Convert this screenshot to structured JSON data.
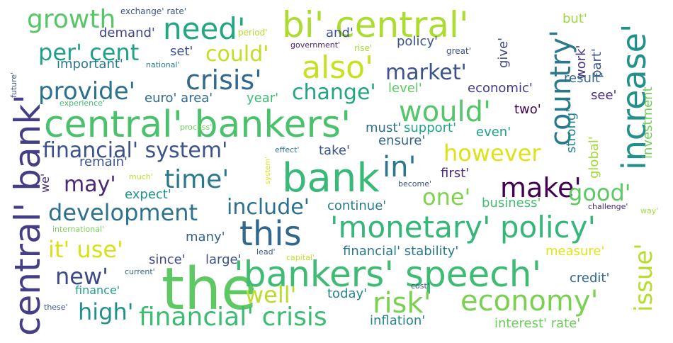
{
  "words": [
    {
      "text": "the",
      "color": "#5ec962"
    },
    {
      "text": "'bankers' speech'",
      "color": "#3fbc73"
    },
    {
      "text": "central' bankers'",
      "color": "#4ac16d"
    },
    {
      "text": "bi' central'",
      "color": "#addc30"
    },
    {
      "text": "central' bank'",
      "color": "#433e85"
    },
    {
      "text": "bank",
      "color": "#38b977"
    },
    {
      "text": "'monetary' policy'",
      "color": "#35b779"
    },
    {
      "text": "this",
      "color": "#31688e"
    },
    {
      "text": "increase'",
      "color": "#21918c"
    },
    {
      "text": "country'",
      "color": "#2a788e"
    },
    {
      "text": "economy'",
      "color": "#7ad151"
    },
    {
      "text": "financial' crisis",
      "color": "#3dbc74"
    },
    {
      "text": "would'",
      "color": "#54c568"
    },
    {
      "text": "also'",
      "color": "#c8e020"
    },
    {
      "text": "need'",
      "color": "#22a785"
    },
    {
      "text": "growth",
      "color": "#56c667"
    },
    {
      "text": "risk'",
      "color": "#7ad151"
    },
    {
      "text": "crisis'",
      "color": "#31688e"
    },
    {
      "text": "financial' system'",
      "color": "#3b528b"
    },
    {
      "text": "development",
      "color": "#2c718e"
    },
    {
      "text": "make'",
      "color": "#440154"
    },
    {
      "text": "time'",
      "color": "#2a788e"
    },
    {
      "text": "in'",
      "color": "#2a788e"
    },
    {
      "text": "per' cent",
      "color": "#1fa088"
    },
    {
      "text": "however",
      "color": "#dde318"
    },
    {
      "text": "change'",
      "color": "#21a585"
    },
    {
      "text": "market'",
      "color": "#3b528b"
    },
    {
      "text": "provide'",
      "color": "#2c718e"
    },
    {
      "text": "include'",
      "color": "#2c718e"
    },
    {
      "text": "issue'",
      "color": "#b5de2b"
    },
    {
      "text": "high'",
      "color": "#21918c"
    },
    {
      "text": "good'",
      "color": "#5ec962"
    },
    {
      "text": "could'",
      "color": "#c2df23"
    },
    {
      "text": "it' use'",
      "color": "#d8e219"
    },
    {
      "text": "one'",
      "color": "#7fd34e"
    },
    {
      "text": "new'",
      "color": "#3e4989"
    },
    {
      "text": "may'",
      "color": "#482878"
    },
    {
      "text": "well'",
      "color": "#b8de29"
    },
    {
      "text": "investment",
      "color": "#6ece58"
    },
    {
      "text": "global'",
      "color": "#a0da39"
    },
    {
      "text": "strong'",
      "color": "#24868e"
    },
    {
      "text": "give'",
      "color": "#3e4989"
    },
    {
      "text": "part'",
      "color": "#3b528b"
    },
    {
      "text": "work'",
      "color": "#46327e"
    },
    {
      "text": "inflation'",
      "color": "#25848e"
    },
    {
      "text": "interest' rate'",
      "color": "#6ccd5a"
    },
    {
      "text": "financial' stability'",
      "color": "#2a788e"
    },
    {
      "text": "credit'",
      "color": "#31688e"
    },
    {
      "text": "policy'",
      "color": "#3b528b"
    },
    {
      "text": "economic'",
      "color": "#443a83"
    },
    {
      "text": "support'",
      "color": "#20a486"
    },
    {
      "text": "must'",
      "color": "#2c718e"
    },
    {
      "text": "ensure'",
      "color": "#33638d"
    },
    {
      "text": "take'",
      "color": "#39568c"
    },
    {
      "text": "first'",
      "color": "#472c7a"
    },
    {
      "text": "remain'",
      "color": "#3b528b"
    },
    {
      "text": "expect'",
      "color": "#1f948c"
    },
    {
      "text": "continue'",
      "color": "#287c8e"
    },
    {
      "text": "business'",
      "color": "#42be71"
    },
    {
      "text": "measure'",
      "color": "#e2e418"
    },
    {
      "text": "large'",
      "color": "#3b528b"
    },
    {
      "text": "since'",
      "color": "#3e4989"
    },
    {
      "text": "many'",
      "color": "#33638d"
    },
    {
      "text": "today'",
      "color": "#25848e"
    },
    {
      "text": "finance'",
      "color": "#1f9e89"
    },
    {
      "text": "result'",
      "color": "#31688e"
    },
    {
      "text": "see'",
      "color": "#472d7b"
    },
    {
      "text": "two'",
      "color": "#440154"
    },
    {
      "text": "even'",
      "color": "#1fa088"
    },
    {
      "text": "year'",
      "color": "#3dbc74"
    },
    {
      "text": "euro' area'",
      "color": "#31688e"
    },
    {
      "text": "level'",
      "color": "#5ec962"
    },
    {
      "text": "important'",
      "color": "#2a788e"
    },
    {
      "text": "demand'",
      "color": "#414487"
    },
    {
      "text": "set'",
      "color": "#3b528b"
    },
    {
      "text": "and'",
      "color": "#3b528b"
    },
    {
      "text": "but'",
      "color": "#9bd93c"
    },
    {
      "text": "we'",
      "color": "#472d7b"
    },
    {
      "text": "exchange' rate'",
      "color": "#3b528b"
    },
    {
      "text": "period'",
      "color": "#b5de2b"
    },
    {
      "text": "government'",
      "color": "#482475"
    },
    {
      "text": "rise'",
      "color": "#a5db36"
    },
    {
      "text": "great'",
      "color": "#3b528b"
    },
    {
      "text": "national'",
      "color": "#287c8e"
    },
    {
      "text": "experience'",
      "color": "#3dbc74"
    },
    {
      "text": "future'",
      "color": "#3b528b"
    },
    {
      "text": "process'",
      "color": "#6ece58"
    },
    {
      "text": "effect'",
      "color": "#2a788e"
    },
    {
      "text": "system'",
      "color": "#d8e219"
    },
    {
      "text": "much'",
      "color": "#b8de29"
    },
    {
      "text": "become'",
      "color": "#3b528b"
    },
    {
      "text": "challenge'",
      "color": "#482878"
    },
    {
      "text": "way'",
      "color": "#a5db36"
    },
    {
      "text": "international'",
      "color": "#7ad151"
    },
    {
      "text": "lead'",
      "color": "#39568c"
    },
    {
      "text": "capital'",
      "color": "#c2df23"
    },
    {
      "text": "current'",
      "color": "#31688e"
    },
    {
      "text": "cost'",
      "color": "#3b528b"
    },
    {
      "text": "these'",
      "color": "#3b528b"
    }
  ]
}
